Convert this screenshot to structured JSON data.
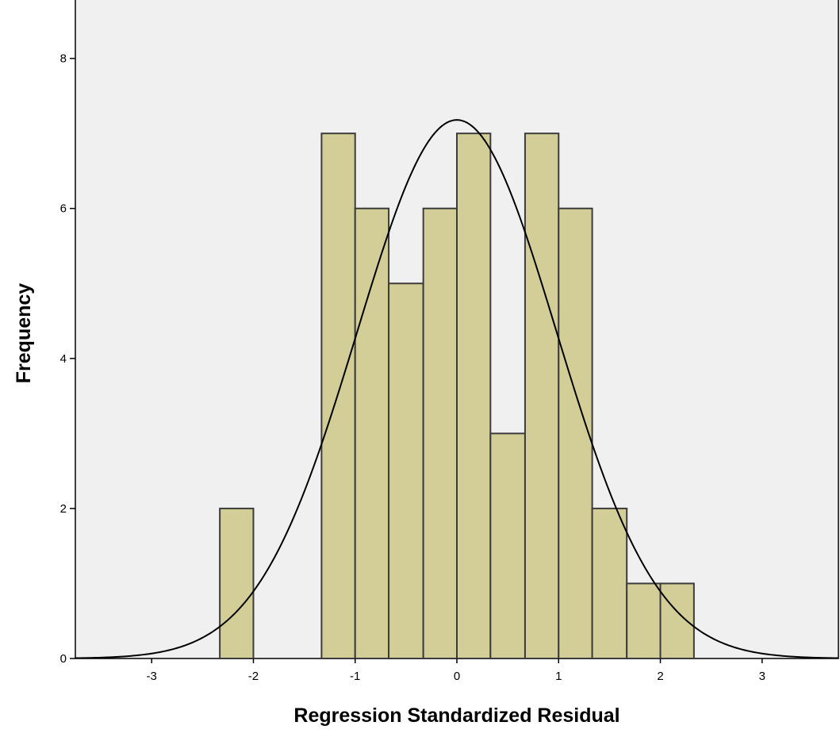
{
  "chart_data": {
    "type": "bar",
    "subtype": "histogram with normal curve",
    "xlabel": "Regression Standardized Residual",
    "ylabel": "Frequency",
    "xlim": [
      -3.75,
      3.75
    ],
    "ylim": [
      0,
      8.8
    ],
    "x_ticks": [
      -3,
      -2,
      -1,
      0,
      1,
      2,
      3
    ],
    "x_tick_labels": [
      "-3",
      "-2",
      "-1",
      "0",
      "1",
      "2",
      "3"
    ],
    "y_ticks": [
      0,
      2,
      4,
      6,
      8
    ],
    "y_tick_labels": [
      "0",
      "2",
      "4",
      "6",
      "8"
    ],
    "grid": false,
    "legend": "none",
    "bins": [
      {
        "x0": -2.33,
        "x1": -2.0,
        "value": 2
      },
      {
        "x0": -2.0,
        "x1": -1.67,
        "value": 0
      },
      {
        "x0": -1.67,
        "x1": -1.33,
        "value": 0
      },
      {
        "x0": -1.33,
        "x1": -1.0,
        "value": 7
      },
      {
        "x0": -1.0,
        "x1": -0.67,
        "value": 6
      },
      {
        "x0": -0.67,
        "x1": -0.33,
        "value": 5
      },
      {
        "x0": -0.33,
        "x1": 0.0,
        "value": 6
      },
      {
        "x0": 0.0,
        "x1": 0.33,
        "value": 7
      },
      {
        "x0": 0.33,
        "x1": 0.67,
        "value": 3
      },
      {
        "x0": 0.67,
        "x1": 1.0,
        "value": 7
      },
      {
        "x0": 1.0,
        "x1": 1.33,
        "value": 6
      },
      {
        "x0": 1.33,
        "x1": 1.67,
        "value": 2
      },
      {
        "x0": 1.67,
        "x1": 2.0,
        "value": 1
      },
      {
        "x0": 2.0,
        "x1": 2.33,
        "value": 1
      }
    ],
    "normal_curve": {
      "mean": 0.0,
      "std_dev": 0.98,
      "peak": 7.18
    },
    "colors": {
      "plot_background": "#f0f0f0",
      "bar_fill": "#d3ce97",
      "bar_stroke": "#3c3c3c",
      "curve": "#000000",
      "axis": "#000000"
    }
  }
}
